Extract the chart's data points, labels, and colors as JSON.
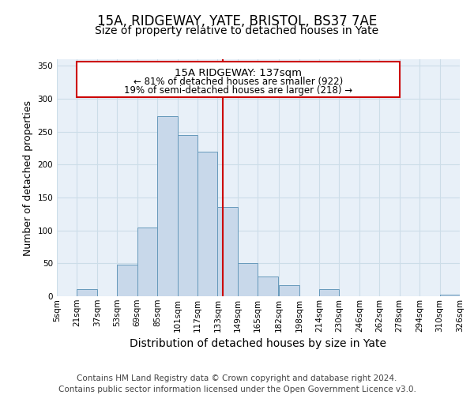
{
  "title": "15A, RIDGEWAY, YATE, BRISTOL, BS37 7AE",
  "subtitle": "Size of property relative to detached houses in Yate",
  "xlabel": "Distribution of detached houses by size in Yate",
  "ylabel": "Number of detached properties",
  "bin_edges": [
    5,
    21,
    37,
    53,
    69,
    85,
    101,
    117,
    133,
    149,
    165,
    182,
    198,
    214,
    230,
    246,
    262,
    278,
    294,
    310,
    326
  ],
  "bin_labels": [
    "5sqm",
    "21sqm",
    "37sqm",
    "53sqm",
    "69sqm",
    "85sqm",
    "101sqm",
    "117sqm",
    "133sqm",
    "149sqm",
    "165sqm",
    "182sqm",
    "198sqm",
    "214sqm",
    "230sqm",
    "246sqm",
    "262sqm",
    "278sqm",
    "294sqm",
    "310sqm",
    "326sqm"
  ],
  "counts": [
    0,
    11,
    0,
    48,
    104,
    274,
    245,
    220,
    136,
    50,
    30,
    17,
    0,
    11,
    0,
    0,
    0,
    0,
    0,
    3
  ],
  "bar_facecolor": "#c8d8ea",
  "bar_edgecolor": "#6699bb",
  "reference_line_x": 137,
  "reference_line_color": "#cc0000",
  "annotation_title": "15A RIDGEWAY: 137sqm",
  "annotation_line1": "← 81% of detached houses are smaller (922)",
  "annotation_line2": "19% of semi-detached houses are larger (218) →",
  "annotation_box_edgecolor": "#cc0000",
  "annotation_box_facecolor": "#ffffff",
  "ylim": [
    0,
    360
  ],
  "yticks": [
    0,
    50,
    100,
    150,
    200,
    250,
    300,
    350
  ],
  "grid_color": "#ccdde8",
  "background_color": "#e8f0f8",
  "footer_line1": "Contains HM Land Registry data © Crown copyright and database right 2024.",
  "footer_line2": "Contains public sector information licensed under the Open Government Licence v3.0.",
  "title_fontsize": 12,
  "subtitle_fontsize": 10,
  "xlabel_fontsize": 10,
  "ylabel_fontsize": 9,
  "tick_fontsize": 7.5,
  "footer_fontsize": 7.5
}
